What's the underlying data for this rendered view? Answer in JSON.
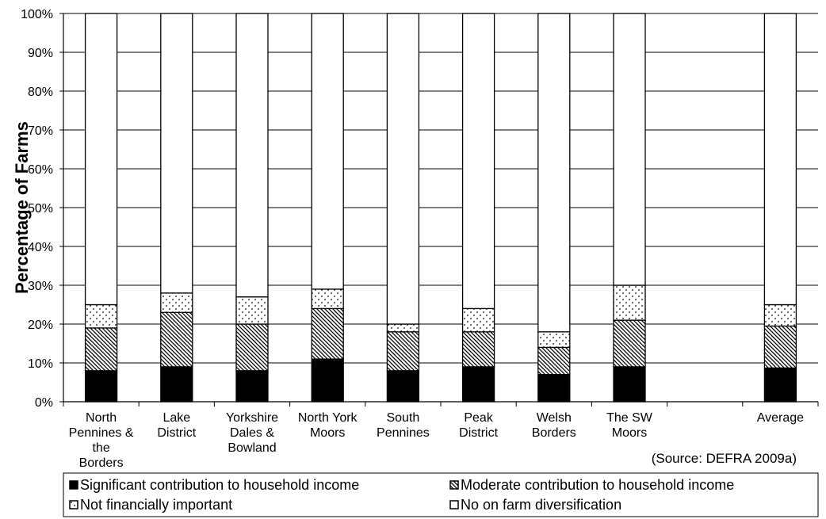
{
  "chart_data": {
    "type": "bar",
    "stacked": true,
    "categories": [
      "North Pennines & the Borders",
      "Lake District",
      "Yorkshire Dales & Bowland",
      "North York Moors",
      "South Pennines",
      "Peak District",
      "Welsh Borders",
      "The SW Moors",
      "",
      "Average"
    ],
    "category_lines": [
      [
        "North",
        "Pennines &",
        "the",
        "Borders"
      ],
      [
        "Lake",
        "District"
      ],
      [
        "Yorkshire",
        "Dales &",
        "Bowland"
      ],
      [
        "North York",
        "Moors"
      ],
      [
        "South",
        "Pennines"
      ],
      [
        "Peak",
        "District"
      ],
      [
        "Welsh",
        "Borders"
      ],
      [
        "The SW",
        "Moors"
      ],
      [],
      [
        "Average"
      ]
    ],
    "series": [
      {
        "name": "Significant contribution to household income",
        "pattern": "solid",
        "values": [
          8,
          9,
          8,
          11,
          8,
          9,
          7,
          9,
          null,
          8.7
        ]
      },
      {
        "name": "Moderate contribution to household income",
        "pattern": "diagonal",
        "values": [
          11,
          14,
          12,
          13,
          10,
          9,
          7,
          12,
          null,
          10.8
        ]
      },
      {
        "name": "Not financially important",
        "pattern": "dots",
        "values": [
          6,
          5,
          7,
          5,
          2,
          6,
          4,
          9,
          null,
          5.5
        ]
      },
      {
        "name": "No on farm diversification",
        "pattern": "white",
        "values": [
          75,
          72,
          73,
          71,
          80,
          76,
          82,
          70,
          null,
          75
        ]
      }
    ],
    "ylabel": "Percentage of Farms",
    "xlabel": "",
    "ylim": [
      0,
      100
    ],
    "yticks": [
      "0%",
      "10%",
      "20%",
      "30%",
      "40%",
      "50%",
      "60%",
      "70%",
      "80%",
      "90%",
      "100%"
    ],
    "annotation": "(Source: DEFRA 2009a)",
    "legend_position": "bottom",
    "grid": true
  }
}
